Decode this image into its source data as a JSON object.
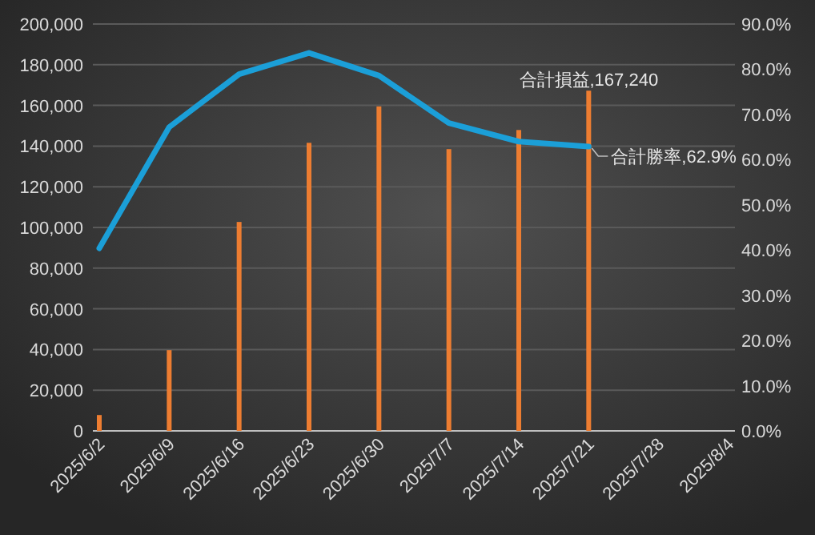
{
  "chart_data": {
    "type": "bar",
    "categories": [
      "2025/6/2",
      "2025/6/9",
      "2025/6/16",
      "2025/6/23",
      "2025/6/30",
      "2025/7/7",
      "2025/7/14",
      "2025/7/21",
      "2025/7/28",
      "2025/8/4"
    ],
    "series": [
      {
        "color": "#ed7d31",
        "values": [
          7800,
          39700,
          102700,
          141600,
          159500,
          138500,
          147900,
          167240,
          null,
          null
        ],
        "value_labels": [
          null,
          null,
          null,
          null,
          null,
          null,
          null,
          "合計損益,167,240",
          null,
          null
        ]
      },
      {
        "type": "line",
        "axis": "y2",
        "color": "#1b9fd8",
        "values": [
          40.4,
          67.2,
          78.9,
          83.6,
          78.6,
          68.1,
          64.0,
          62.9,
          null,
          null
        ],
        "value_labels": [
          null,
          null,
          null,
          null,
          null,
          null,
          null,
          "合計勝率,62.9%",
          null,
          null
        ]
      }
    ],
    "ylim": [
      0,
      200000
    ],
    "yticks": [
      0,
      {
        "value": 20000,
        "label": "20,000"
      },
      {
        "value": 40000,
        "label": "40,000"
      },
      {
        "value": 60000,
        "label": "60,000"
      },
      {
        "value": 80000,
        "label": "80,000"
      },
      {
        "value": 100000,
        "label": "100,000"
      },
      {
        "value": 120000,
        "label": "120,000"
      },
      {
        "value": 140000,
        "label": "140,000"
      },
      {
        "value": 160000,
        "label": "160,000"
      },
      {
        "value": 180000,
        "label": "180,000"
      },
      {
        "value": 200000,
        "label": "200,000"
      }
    ],
    "y2lim": [
      0,
      90
    ],
    "y2ticks": [
      {
        "value": 0,
        "label": "0.0%"
      },
      {
        "value": 10,
        "label": "10.0%"
      },
      {
        "value": 20,
        "label": "20.0%"
      },
      {
        "value": 30,
        "label": "30.0%"
      },
      {
        "value": 40,
        "label": "40.0%"
      },
      {
        "value": 50,
        "label": "50.0%"
      },
      {
        "value": 60,
        "label": "60.0%"
      },
      {
        "value": 70,
        "label": "70.0%"
      },
      {
        "value": 80,
        "label": "80.0%"
      },
      {
        "value": 90,
        "label": "90.0%"
      }
    ],
    "grid": "y"
  }
}
